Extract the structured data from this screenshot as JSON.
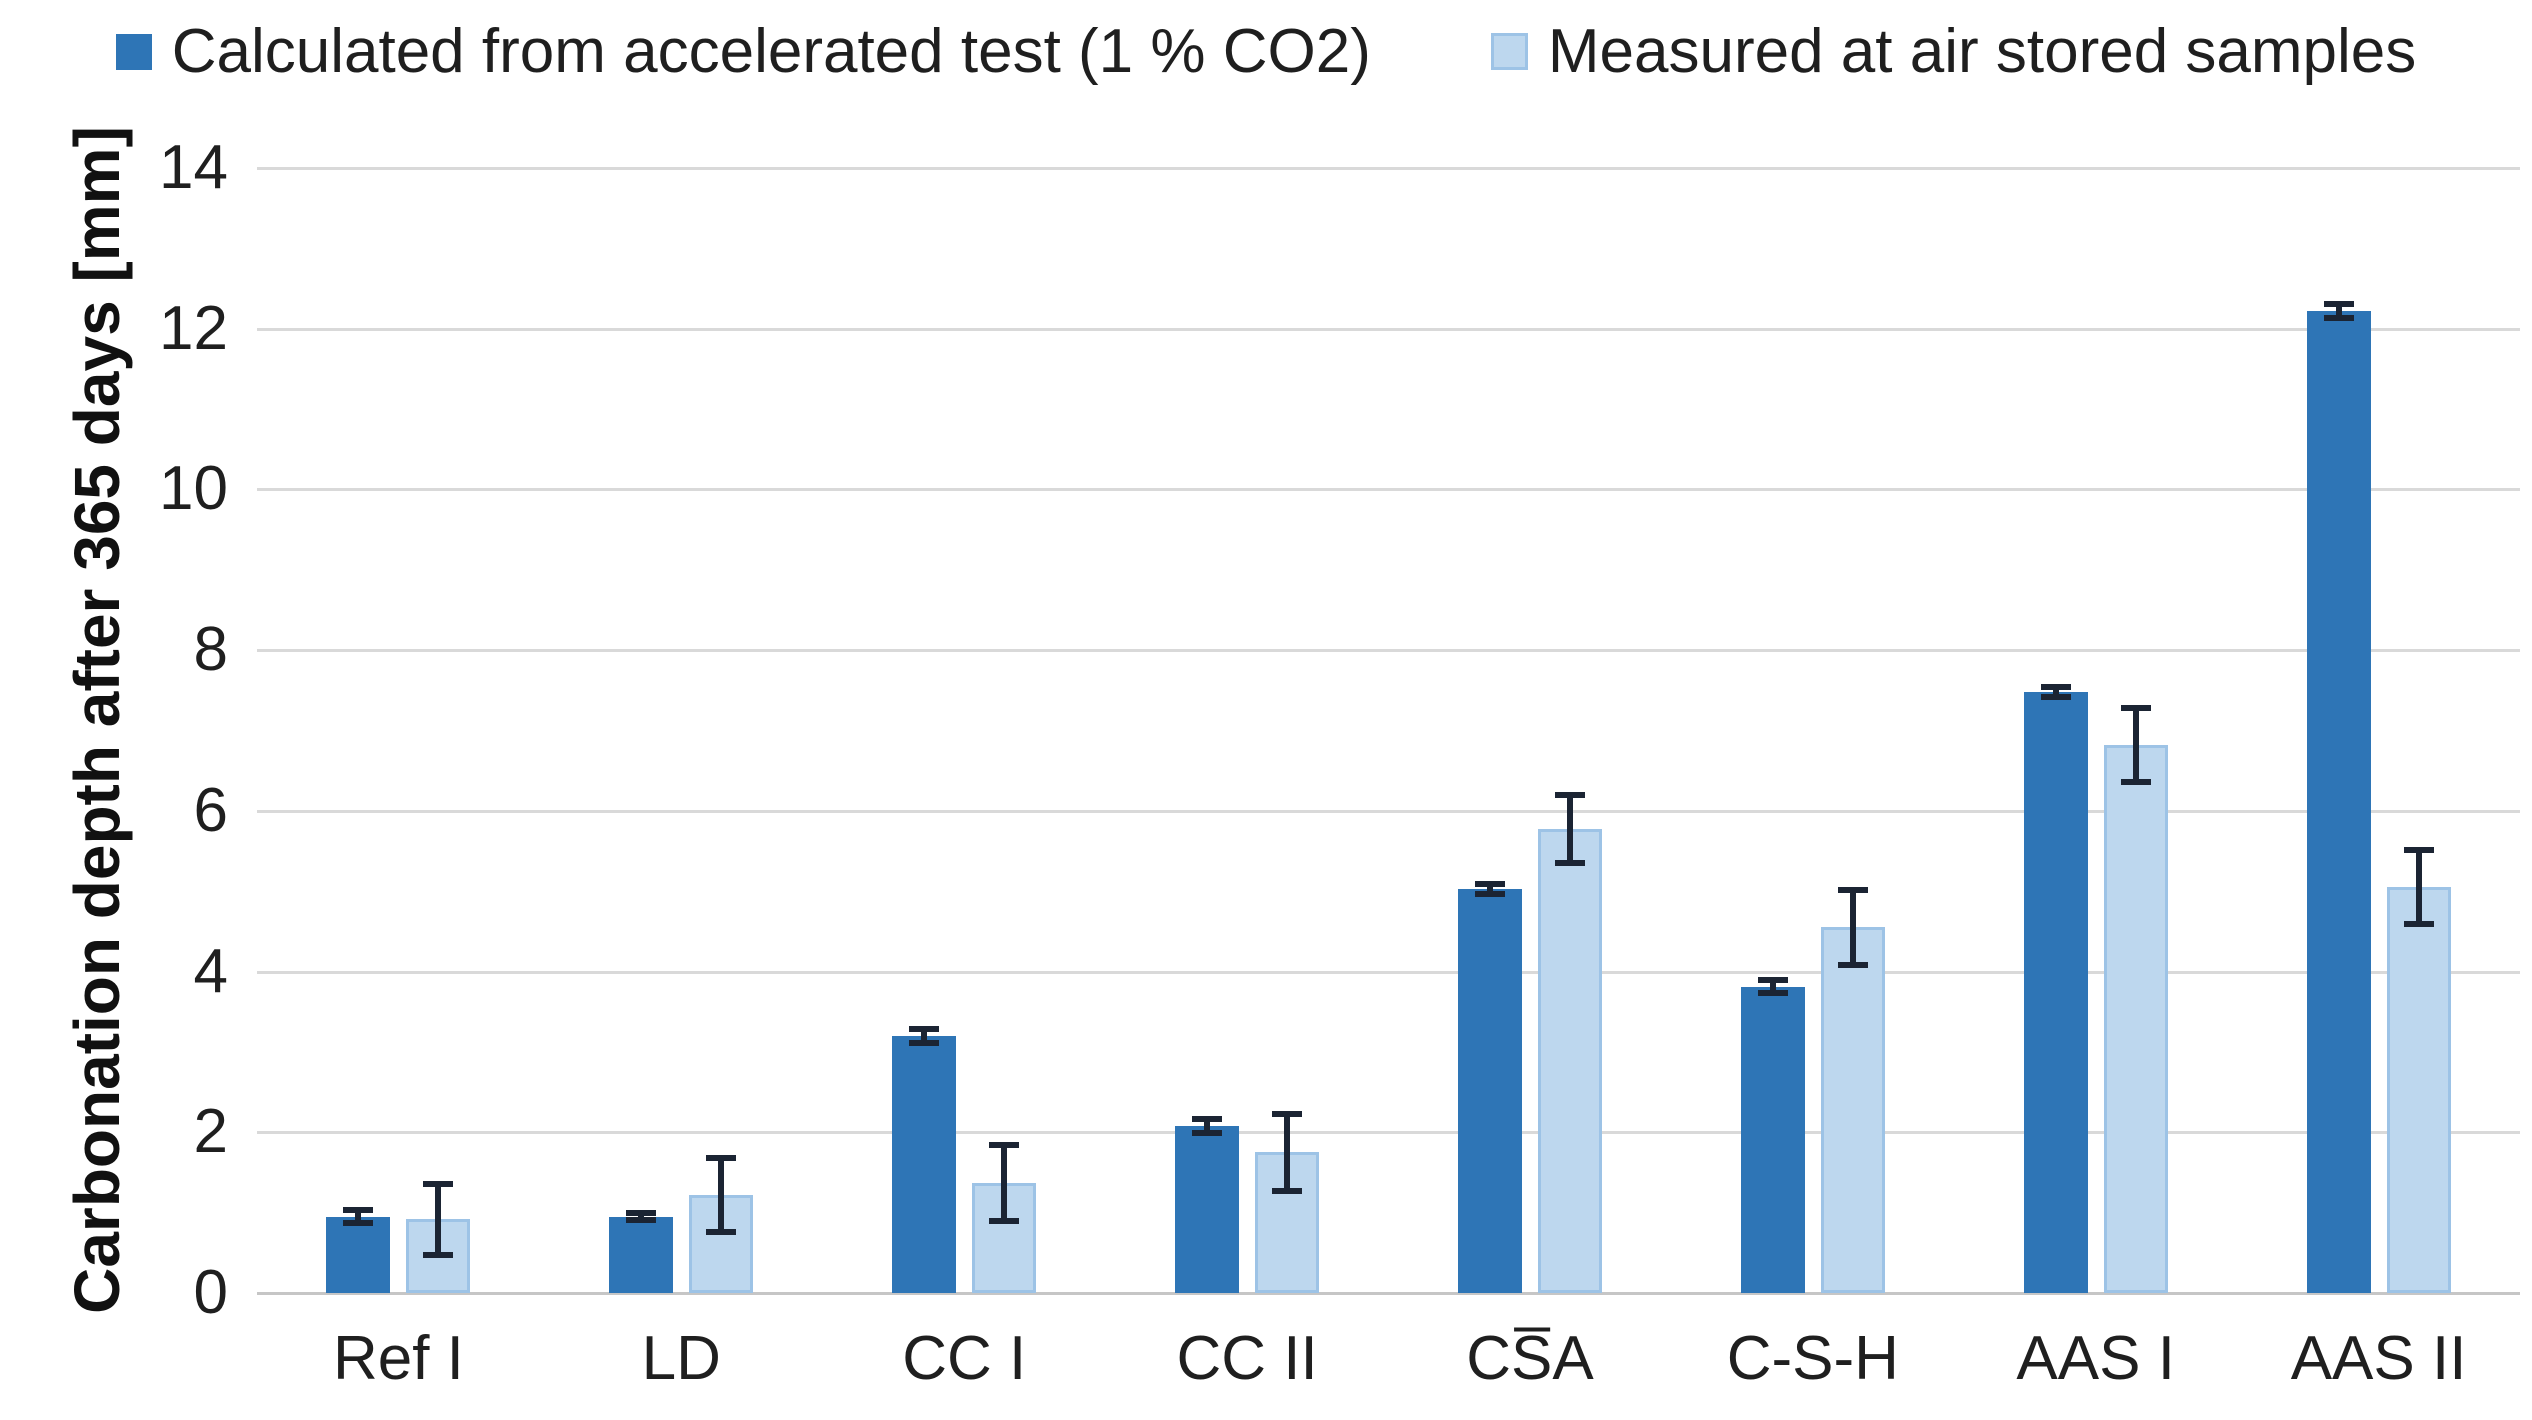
{
  "chart_data": {
    "type": "bar",
    "title": "",
    "xlabel": "",
    "ylabel": "Carbonation depth after 365 days [mm]",
    "ylim": [
      0,
      14
    ],
    "yticks": [
      0,
      2,
      4,
      6,
      8,
      10,
      12,
      14
    ],
    "grid": true,
    "legend_position": "top",
    "categories": [
      "Ref I",
      "LD",
      "CC I",
      "CC II",
      "CS̅A",
      "C-S-H",
      "AAS I",
      "AAS II"
    ],
    "series": [
      {
        "name": "Calculated from accelerated test (1 % CO2)",
        "color": "#2E75B6",
        "border_color": "#2E75B6",
        "values": [
          0.95,
          0.95,
          3.2,
          2.08,
          5.03,
          3.81,
          7.48,
          12.22
        ],
        "errors": [
          0.12,
          0.08,
          0.12,
          0.12,
          0.1,
          0.12,
          0.1,
          0.12
        ]
      },
      {
        "name": "Measured at air stored samples",
        "color": "#BDD7EE",
        "border_color": "#9DC3E6",
        "values": [
          0.92,
          1.22,
          1.37,
          1.75,
          5.78,
          4.55,
          6.82,
          5.05
        ],
        "errors": [
          0.48,
          0.5,
          0.51,
          0.52,
          0.46,
          0.5,
          0.5,
          0.5
        ]
      }
    ],
    "error_bar_color": "#1B2433",
    "gridline_color": "#D9D9D9",
    "text_color": "#1F1F1F"
  }
}
